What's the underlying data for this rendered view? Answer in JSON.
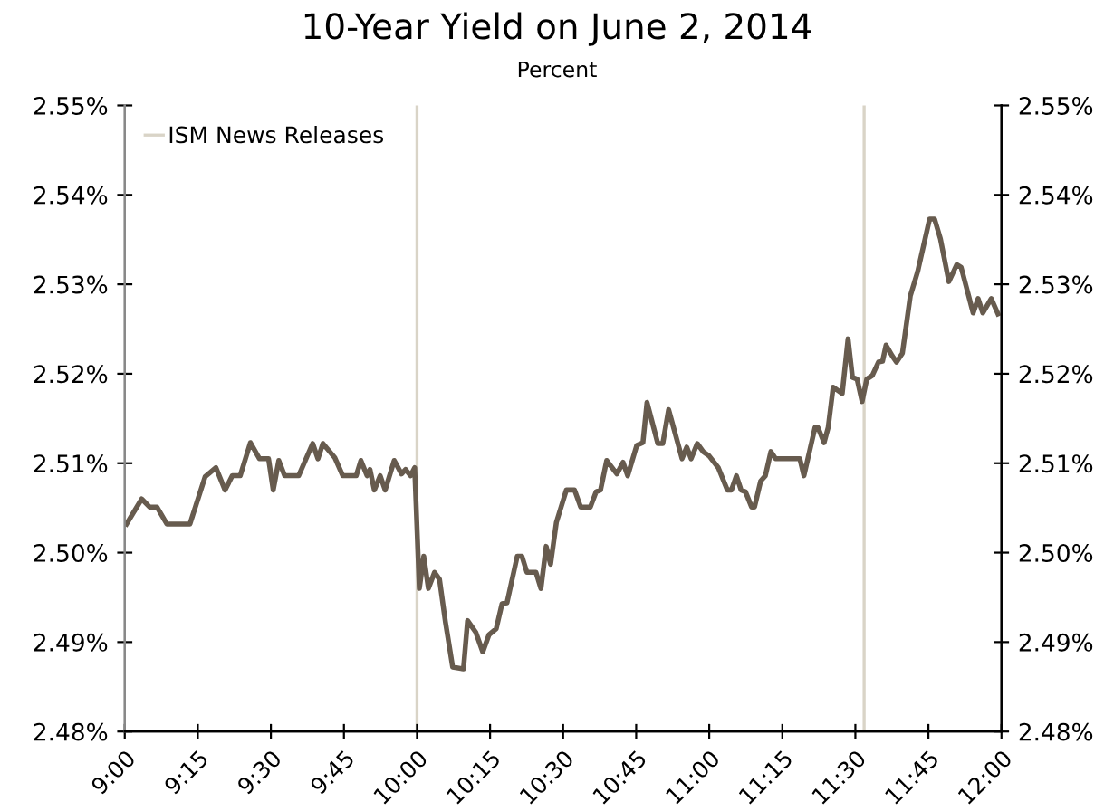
{
  "chart_data": {
    "type": "line",
    "title": "10-Year Yield on June 2, 2014",
    "subtitle": "Percent",
    "xlim": [
      9,
      12
    ],
    "xticks": [
      {
        "value": 9,
        "label": "9:00"
      },
      {
        "value": 9.25,
        "label": "9:15"
      },
      {
        "value": 9.5,
        "label": "9:30"
      },
      {
        "value": 9.75,
        "label": "9:45"
      },
      {
        "value": 10,
        "label": "10:00"
      },
      {
        "value": 10.25,
        "label": "10:15"
      },
      {
        "value": 10.5,
        "label": "10:30"
      },
      {
        "value": 10.75,
        "label": "10:45"
      },
      {
        "value": 11,
        "label": "11:00"
      },
      {
        "value": 11.25,
        "label": "11:15"
      },
      {
        "value": 11.5,
        "label": "11:30"
      },
      {
        "value": 11.75,
        "label": "11:45"
      },
      {
        "value": 12,
        "label": "12:00"
      }
    ],
    "ylim": [
      2.48,
      2.55
    ],
    "yticks": [
      {
        "value": 2.48,
        "label": "2.48%"
      },
      {
        "value": 2.49,
        "label": "2.49%"
      },
      {
        "value": 2.5,
        "label": "2.50%"
      },
      {
        "value": 2.51,
        "label": "2.51%"
      },
      {
        "value": 2.52,
        "label": "2.52%"
      },
      {
        "value": 2.53,
        "label": "2.53%"
      },
      {
        "value": 2.54,
        "label": "2.54%"
      },
      {
        "value": 2.55,
        "label": "2.55%"
      }
    ],
    "y2lim": [
      2.48,
      2.55
    ],
    "y2ticks": [
      {
        "value": 2.48,
        "label": "2.48%"
      },
      {
        "value": 2.49,
        "label": "2.49%"
      },
      {
        "value": 2.5,
        "label": "2.50%"
      },
      {
        "value": 2.51,
        "label": "2.51%"
      },
      {
        "value": 2.52,
        "label": "2.52%"
      },
      {
        "value": 2.53,
        "label": "2.53%"
      },
      {
        "value": 2.54,
        "label": "2.54%"
      },
      {
        "value": 2.55,
        "label": "2.55%"
      }
    ],
    "grid": false,
    "legend": "top left",
    "marker": "none",
    "line_style": "solid",
    "ref_lines": [
      {
        "axis": "x",
        "value": 10.0,
        "label": "ISM News Releases",
        "color": "#d9d4c7"
      },
      {
        "axis": "x",
        "value": 11.53,
        "color": "#d9d4c7"
      }
    ],
    "series": [
      {
        "color": "#675b4e",
        "x": [
          9.006,
          9.058,
          9.085,
          9.11,
          9.144,
          9.223,
          9.275,
          9.312,
          9.343,
          9.368,
          9.395,
          9.43,
          9.461,
          9.492,
          9.508,
          9.527,
          9.547,
          9.595,
          9.643,
          9.661,
          9.678,
          9.719,
          9.746,
          9.792,
          9.808,
          9.829,
          9.839,
          9.854,
          9.874,
          9.891,
          9.922,
          9.947,
          9.961,
          9.978,
          9.992,
          10.008,
          10.023,
          10.039,
          10.06,
          10.077,
          10.097,
          10.122,
          10.159,
          10.173,
          10.201,
          10.225,
          10.246,
          10.271,
          10.291,
          10.308,
          10.343,
          10.359,
          10.376,
          10.407,
          10.424,
          10.442,
          10.457,
          10.477,
          10.511,
          10.539,
          10.56,
          10.593,
          10.613,
          10.628,
          10.649,
          10.684,
          10.705,
          10.721,
          10.752,
          10.773,
          10.787,
          10.824,
          10.841,
          10.861,
          10.907,
          10.923,
          10.938,
          10.959,
          10.979,
          11.0,
          11.031,
          11.062,
          11.076,
          11.093,
          11.109,
          11.124,
          11.145,
          11.155,
          11.176,
          11.192,
          11.211,
          11.227,
          11.31,
          11.324,
          11.362,
          11.372,
          11.393,
          11.407,
          11.424,
          11.455,
          11.475,
          11.49,
          11.506,
          11.523,
          11.539,
          11.558,
          11.579,
          11.593,
          11.605,
          11.626,
          11.641,
          11.661,
          11.688,
          11.713,
          11.754,
          11.771,
          11.791,
          11.82,
          11.847,
          11.862,
          11.903,
          11.92,
          11.936,
          11.965,
          11.988
        ],
        "values": [
          2.5032,
          2.506,
          2.5051,
          2.5051,
          2.5032,
          2.5032,
          2.5085,
          2.5095,
          2.507,
          2.5086,
          2.5086,
          2.5123,
          2.5105,
          2.5105,
          2.507,
          2.5103,
          2.5086,
          2.5086,
          2.5122,
          2.5105,
          2.5122,
          2.5106,
          2.5086,
          2.5086,
          2.5103,
          2.5086,
          2.5093,
          2.507,
          2.5086,
          2.507,
          2.5103,
          2.5088,
          2.5093,
          2.5086,
          2.5095,
          2.496,
          2.4996,
          2.496,
          2.4978,
          2.497,
          2.4923,
          2.4872,
          2.487,
          2.4924,
          2.4911,
          2.4889,
          2.4908,
          2.4915,
          2.4943,
          2.4944,
          2.4996,
          2.4996,
          2.4978,
          2.4978,
          2.496,
          2.5007,
          2.4987,
          2.5034,
          2.507,
          2.507,
          2.5051,
          2.5051,
          2.5068,
          2.507,
          2.5103,
          2.5088,
          2.5101,
          2.5086,
          2.512,
          2.5123,
          2.5168,
          2.5122,
          2.5122,
          2.516,
          2.5105,
          2.5118,
          2.5105,
          2.5122,
          2.5113,
          2.5108,
          2.5095,
          2.507,
          2.507,
          2.5086,
          2.507,
          2.5068,
          2.5051,
          2.5051,
          2.508,
          2.5086,
          2.5113,
          2.5105,
          2.5105,
          2.5086,
          2.514,
          2.514,
          2.5123,
          2.514,
          2.5185,
          2.5178,
          2.5239,
          2.5196,
          2.5194,
          2.5169,
          2.5194,
          2.5198,
          2.5213,
          2.5214,
          2.5232,
          2.522,
          2.5213,
          2.5223,
          2.5287,
          2.5314,
          2.5373,
          2.5373,
          2.5351,
          2.5303,
          2.5322,
          2.5319,
          2.5268,
          2.5284,
          2.5268,
          2.5284,
          2.5267
        ]
      }
    ]
  }
}
